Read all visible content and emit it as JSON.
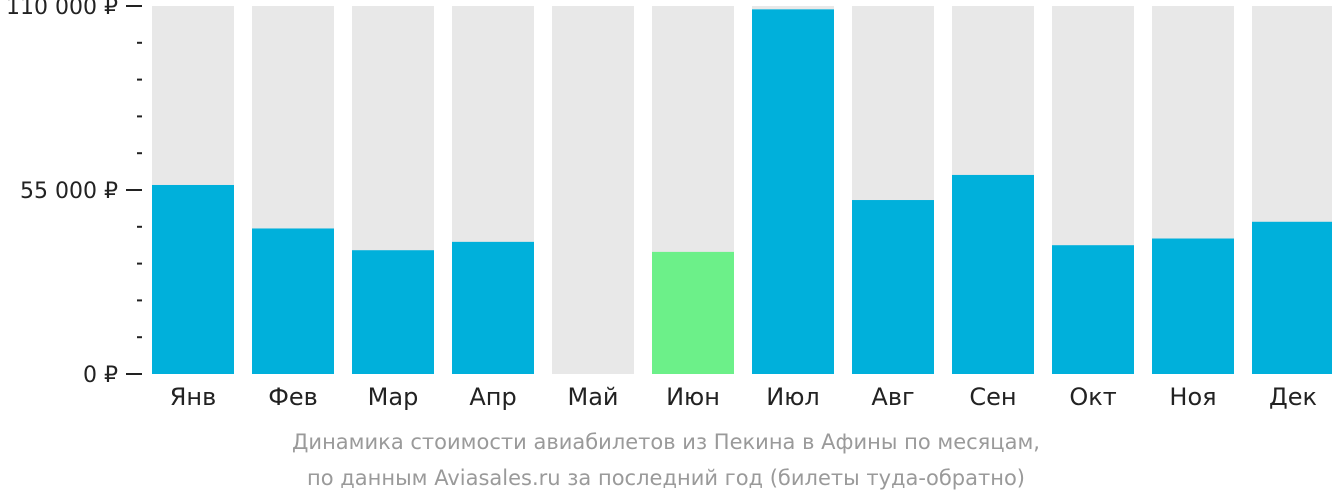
{
  "chart_data": {
    "type": "bar",
    "categories": [
      "Янв",
      "Фев",
      "Мар",
      "Апр",
      "Май",
      "Июн",
      "Июл",
      "Авг",
      "Сен",
      "Окт",
      "Ноя",
      "Дек"
    ],
    "values": [
      56500,
      43500,
      37000,
      39500,
      null,
      36500,
      109000,
      52000,
      59500,
      38500,
      40500,
      45500
    ],
    "highlight_index": 5,
    "ylim": [
      0,
      110000
    ],
    "yticks": [
      {
        "value": 0,
        "label": "0 ₽"
      },
      {
        "value": 55000,
        "label": "55 000 ₽"
      },
      {
        "value": 110000,
        "label": "110 000 ₽"
      }
    ],
    "minor_tick_step": 11000,
    "title": "",
    "xlabel": "",
    "ylabel": "",
    "colors": {
      "bar": "#00b0db",
      "highlight": "#6cf089",
      "background_bar": "#e8e8e8",
      "axis": "#222222"
    }
  },
  "caption": {
    "line1": "Динамика стоимости авиабилетов из Пекина в Афины по месяцам,",
    "line2": "по данным Aviasales.ru за последний год (билеты туда-обратно)"
  }
}
